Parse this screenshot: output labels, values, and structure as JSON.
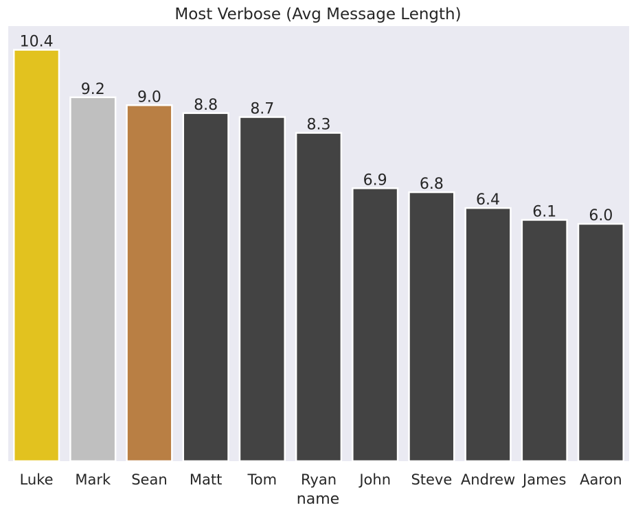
{
  "chart_data": {
    "type": "bar",
    "title": "Most Verbose (Avg Message Length)",
    "xlabel": "name",
    "ylabel": "",
    "ylim": [
      0,
      11.0
    ],
    "grid": false,
    "categories": [
      "Luke",
      "Mark",
      "Sean",
      "Matt",
      "Tom",
      "Ryan",
      "John",
      "Steve",
      "Andrew",
      "James",
      "Aaron"
    ],
    "values": [
      10.4,
      9.2,
      9.0,
      8.8,
      8.7,
      8.3,
      6.9,
      6.8,
      6.4,
      6.1,
      6.0
    ],
    "value_labels": [
      "10.4",
      "9.2",
      "9.0",
      "8.8",
      "8.7",
      "8.3",
      "6.9",
      "6.8",
      "6.4",
      "6.1",
      "6.0"
    ],
    "colors": [
      "#e2c21f",
      "#bfbfbf",
      "#b97f44",
      "#434343",
      "#434343",
      "#434343",
      "#434343",
      "#434343",
      "#434343",
      "#434343",
      "#434343"
    ],
    "plot_background": "#eaeaf2"
  }
}
